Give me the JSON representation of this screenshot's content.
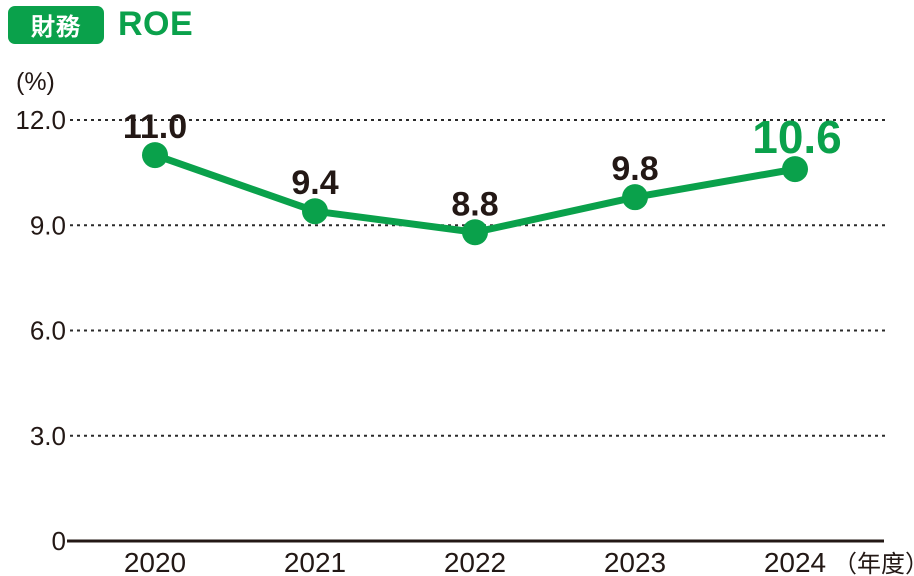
{
  "header": {
    "badge": "財務",
    "title": "ROE"
  },
  "colors": {
    "green": "#0aa14b",
    "text": "#231815",
    "grid": "#2b2b2b",
    "axis": "#231815"
  },
  "chart_data": {
    "type": "line",
    "title": "ROE",
    "category_tag": "財務",
    "categories": [
      "2020",
      "2021",
      "2022",
      "2023",
      "2024"
    ],
    "values": [
      11.0,
      9.4,
      8.8,
      9.8,
      10.6
    ],
    "point_labels": [
      "11.0",
      "9.4",
      "8.8",
      "9.8",
      "10.6"
    ],
    "highlight_last_point": true,
    "ylabel": "(%)",
    "xlabel_suffix": "（年度）",
    "ylim": [
      0,
      12
    ],
    "yticks": [
      0,
      3,
      6,
      9,
      12
    ],
    "ytick_labels": [
      "0",
      "3.0",
      "6.0",
      "9.0",
      "12.0"
    ],
    "grid": "horizontal-dotted",
    "legend": "none"
  }
}
